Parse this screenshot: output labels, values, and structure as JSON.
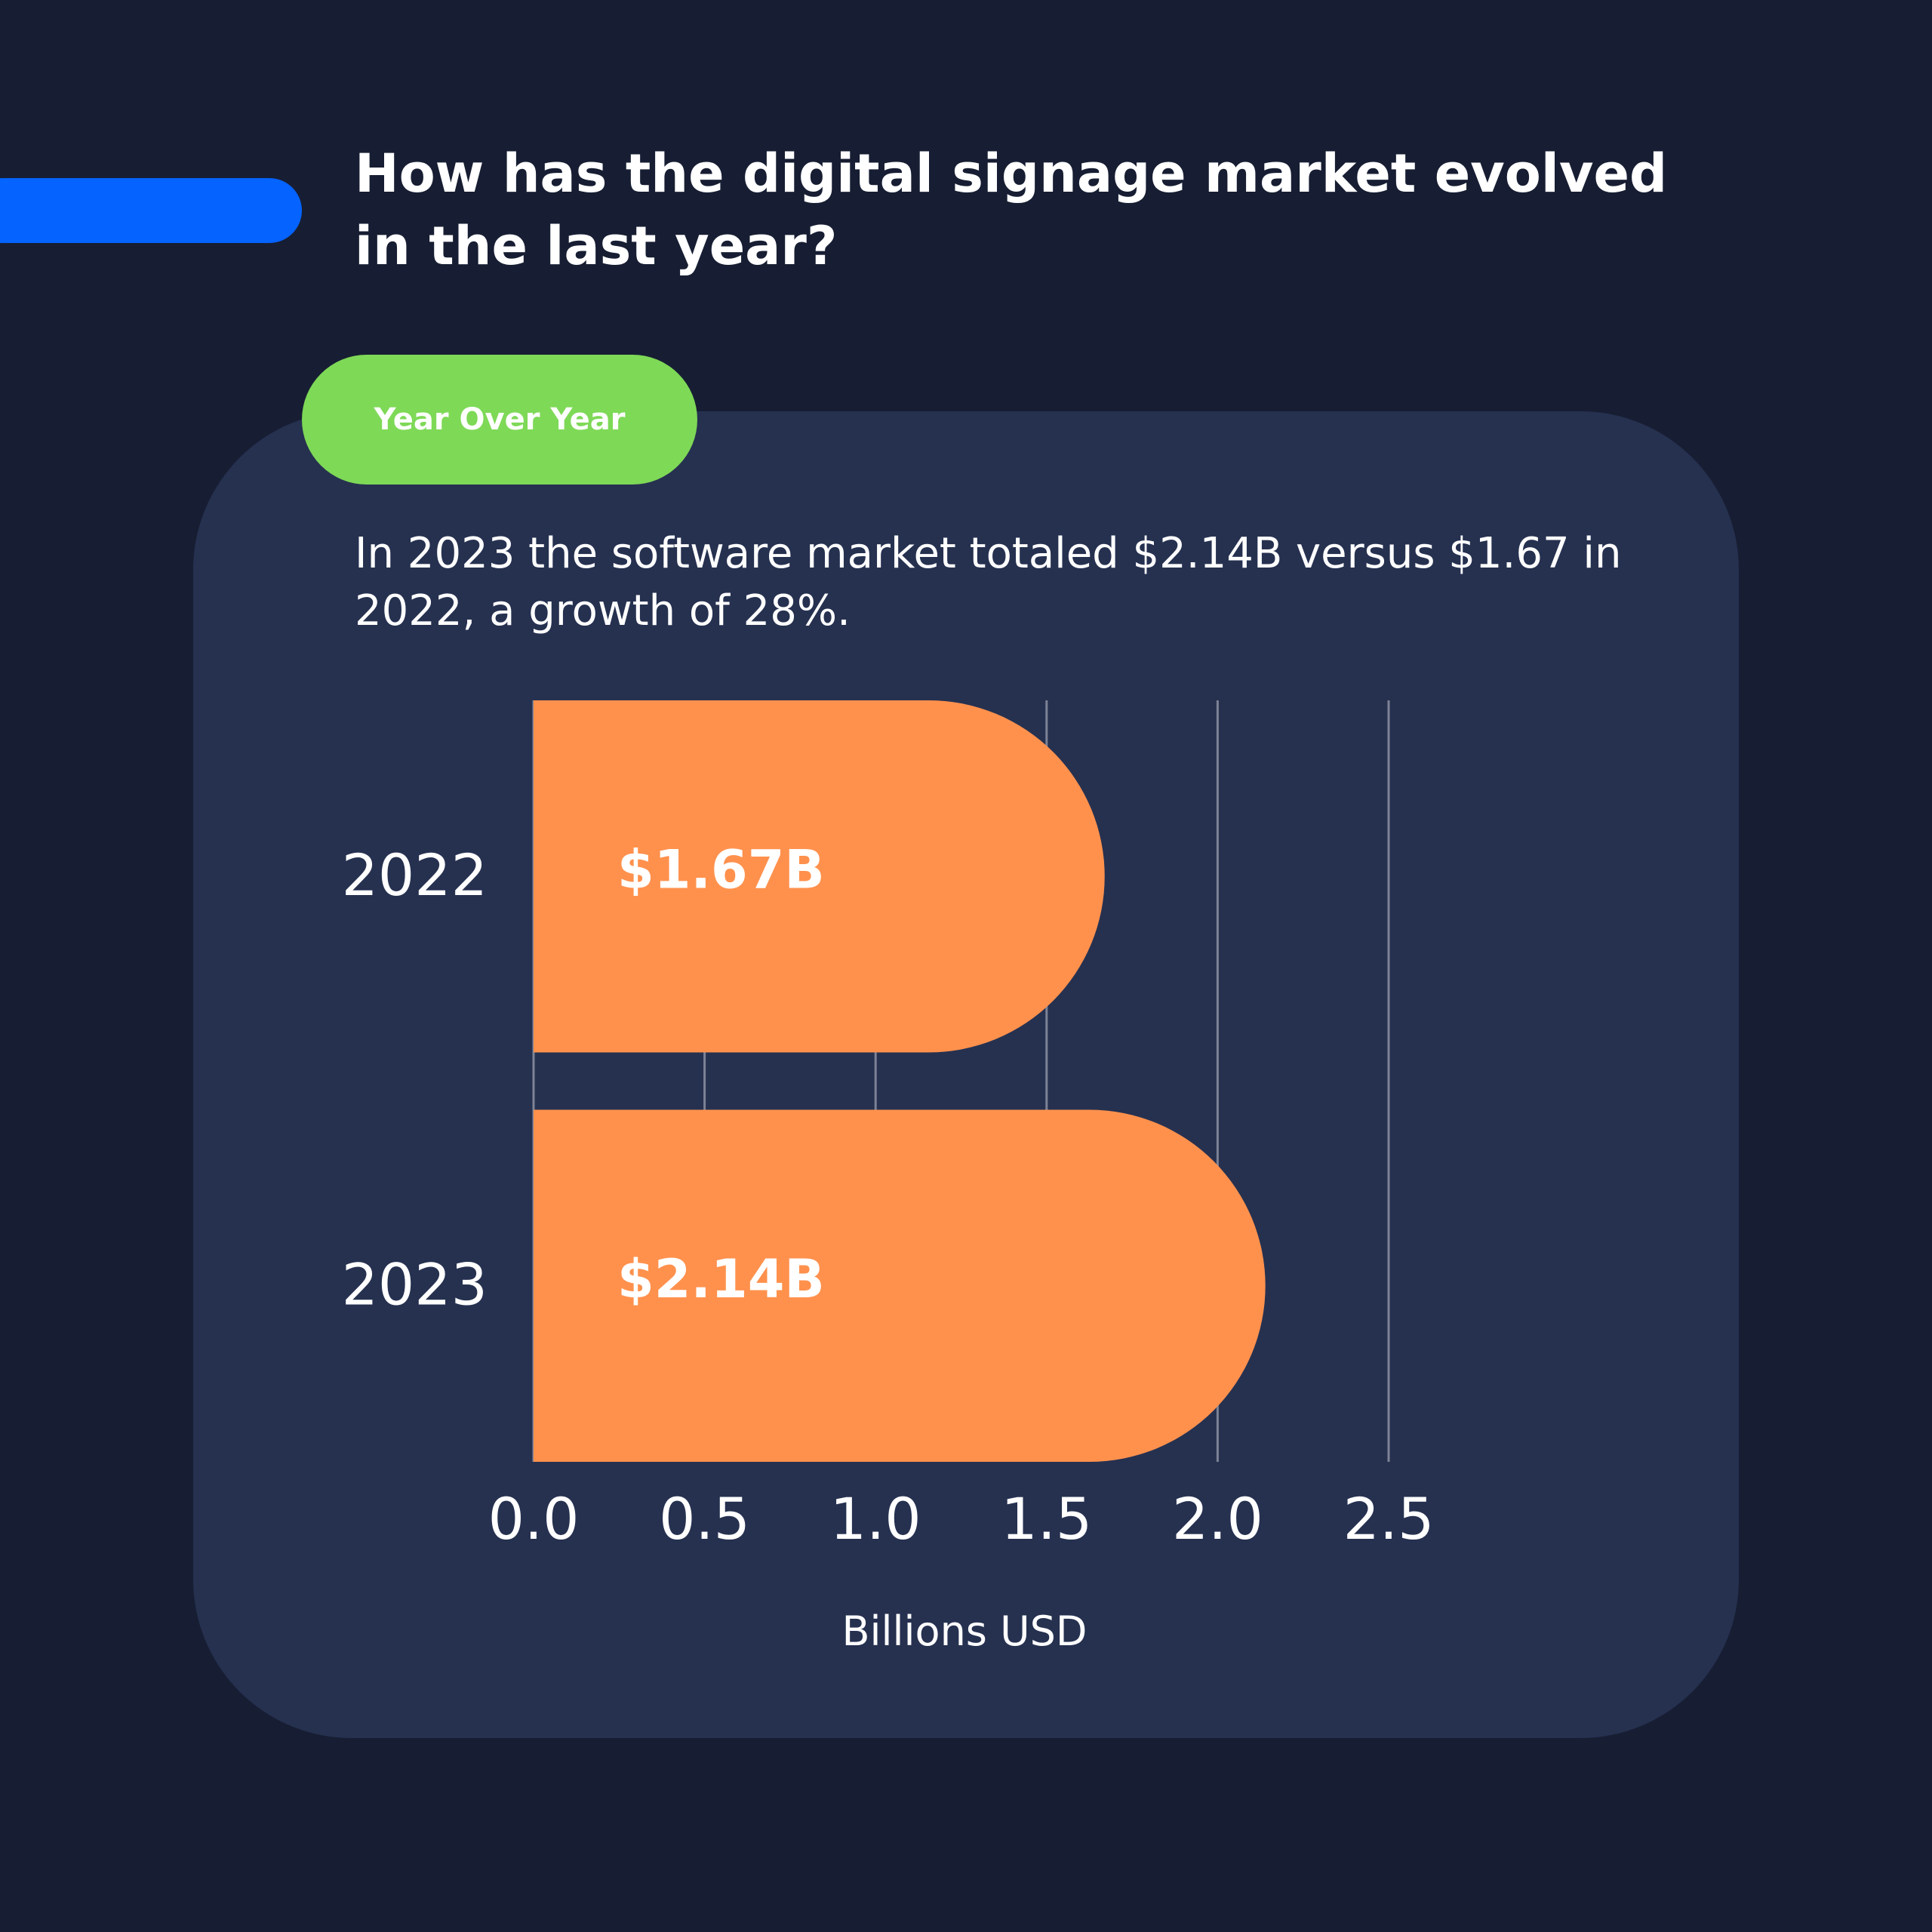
{
  "header": {
    "title": "How has the digital signage market evolved in the last year?"
  },
  "pill": {
    "label": "Year Over Year"
  },
  "summary": {
    "text": "In 2023 the software market totaled $2.14B versus $1.67 in 2022, a growth of 28%."
  },
  "colors": {
    "background": "#171e33",
    "card": "#263150",
    "accent": "#0563ff",
    "pill": "#7ed957",
    "bar": "#ff914d",
    "grid": "#7d8396"
  },
  "chart_data": {
    "type": "bar",
    "orientation": "horizontal",
    "categories": [
      "2022",
      "2023"
    ],
    "values": [
      1.67,
      2.14
    ],
    "data_labels": [
      "$1.67B",
      "$2.14B"
    ],
    "xlabel": "Billions USD",
    "ylabel": "",
    "xlim": [
      0,
      2.5
    ],
    "x_ticks": [
      "0.0",
      "0.5",
      "1.0",
      "1.5",
      "2.0",
      "2.5"
    ],
    "grid": "vertical",
    "legend": "none"
  }
}
